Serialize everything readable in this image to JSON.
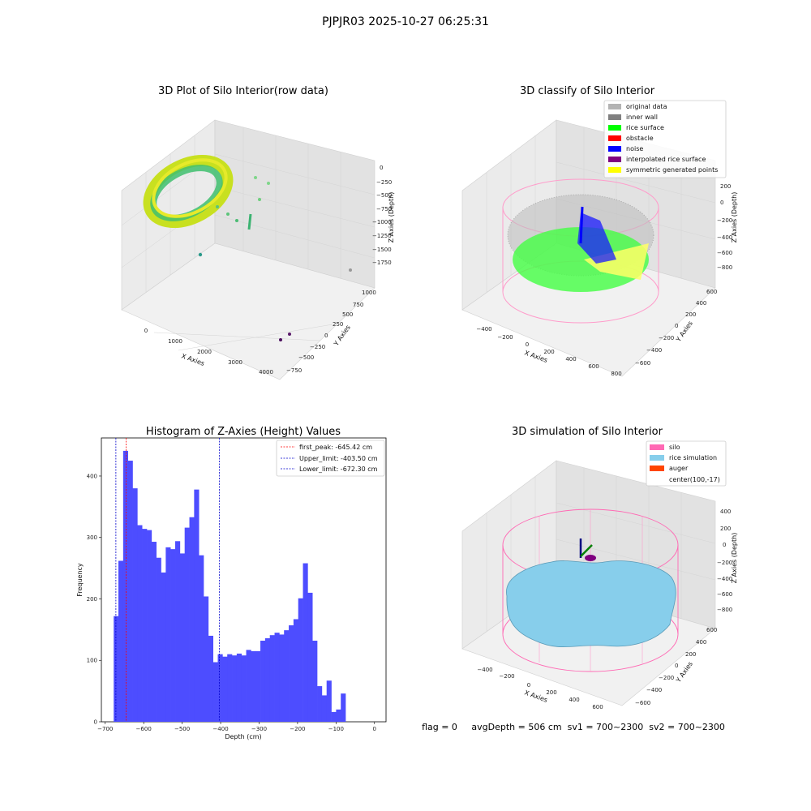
{
  "figure": {
    "suptitle": "PJPJR03 2025-10-27 06:25:31",
    "status_line": "flag = 0     avgDepth = 506 cm  sv1 = 700~2300  sv2 = 700~2300"
  },
  "colors": {
    "hist_bar": "#4d4dff",
    "first_peak": "#ff0000",
    "limit": "#0000cc",
    "silo": "#ff69b4",
    "rice_sim": "#87ceeb",
    "auger": "#ff4500",
    "original": "#b3b3b3",
    "inner_wall": "#808080",
    "rice_surface": "#00ff00",
    "obstacle": "#ff0000",
    "noise": "#0000ff",
    "interp": "#800080",
    "symmetric": "#ffff00"
  },
  "panel_raw": {
    "title": "3D Plot of Silo Interior(row data)",
    "xlabel": "X Axies",
    "ylabel": "Y Axies",
    "zlabel": "Z Axies (Depth)",
    "xticks": [
      "0",
      "1000",
      "2000",
      "3000",
      "4000"
    ],
    "yticks": [
      "1000",
      "750",
      "500",
      "250",
      "0",
      "−250",
      "−500",
      "−750"
    ],
    "zticks": [
      "0",
      "−250",
      "−500",
      "−750",
      "−1000",
      "−1250",
      "−1500",
      "−1750"
    ]
  },
  "panel_classify": {
    "title": "3D classify of Silo Interior",
    "xlabel": "X Axies",
    "ylabel": "Y Axies",
    "zlabel": "Z Axies (Depth)",
    "xticks": [
      "−400",
      "−200",
      "0",
      "200",
      "400",
      "600",
      "800"
    ],
    "yticks": [
      "600",
      "400",
      "200",
      "0",
      "−200",
      "−400",
      "−600"
    ],
    "zticks": [
      "200",
      "0",
      "−200",
      "−400",
      "−600",
      "−800"
    ],
    "legend": [
      {
        "label": "original data",
        "color": "#b3b3b3"
      },
      {
        "label": "inner wall",
        "color": "#808080"
      },
      {
        "label": "rice surface",
        "color": "#00ff00"
      },
      {
        "label": "obstacle",
        "color": "#ff0000"
      },
      {
        "label": "noise",
        "color": "#0000ff"
      },
      {
        "label": "interpolated rice surface",
        "color": "#800080"
      },
      {
        "label": "symmetric generated points",
        "color": "#ffff00"
      }
    ]
  },
  "panel_sim": {
    "title": "3D simulation of Silo Interior",
    "xlabel": "X Axies",
    "ylabel": "Y Axies",
    "zlabel": "Z Axies (Depth)",
    "xticks": [
      "−400",
      "−200",
      "0",
      "200",
      "400",
      "600"
    ],
    "yticks": [
      "600",
      "400",
      "200",
      "0",
      "−200",
      "−400",
      "−600"
    ],
    "zticks": [
      "400",
      "200",
      "0",
      "−200",
      "−400",
      "−600",
      "−800"
    ],
    "legend": [
      {
        "label": "silo",
        "color": "#ff69b4"
      },
      {
        "label": "rice simulation",
        "color": "#87ceeb"
      },
      {
        "label": "auger",
        "color": "#ff4500"
      },
      {
        "label": "center(100,-17)",
        "color": ""
      }
    ]
  },
  "chart_data": {
    "type": "bar",
    "title": "Histogram of Z-Axies (Height) Values",
    "xlabel": "Depth (cm)",
    "ylabel": "Frequency",
    "xlim": [
      -710,
      30
    ],
    "ylim": [
      0,
      462
    ],
    "xticks": [
      -700,
      -600,
      -500,
      -400,
      -300,
      -200,
      -100,
      0
    ],
    "yticks": [
      0,
      100,
      200,
      300,
      400
    ],
    "bin_width": 12.3,
    "bin_start": -678,
    "values": [
      172,
      262,
      441,
      425,
      380,
      320,
      314,
      312,
      293,
      267,
      243,
      284,
      281,
      294,
      274,
      316,
      333,
      378,
      271,
      204,
      140,
      97,
      110,
      106,
      110,
      108,
      111,
      108,
      117,
      115,
      115,
      132,
      136,
      141,
      145,
      142,
      149,
      157,
      167,
      201,
      258,
      210,
      132,
      58,
      43,
      67,
      16,
      20,
      46
    ],
    "vlines": [
      {
        "label": "first_peak: -645.42 cm",
        "x": -645.42,
        "color": "#ff0000"
      },
      {
        "label": "Upper_limit: -403.50 cm",
        "x": -403.5,
        "color": "#0000cc"
      },
      {
        "label": "Lower_limit: -672.30 cm",
        "x": -672.3,
        "color": "#0000cc"
      }
    ],
    "legend_position": "top-right",
    "grid": false
  }
}
